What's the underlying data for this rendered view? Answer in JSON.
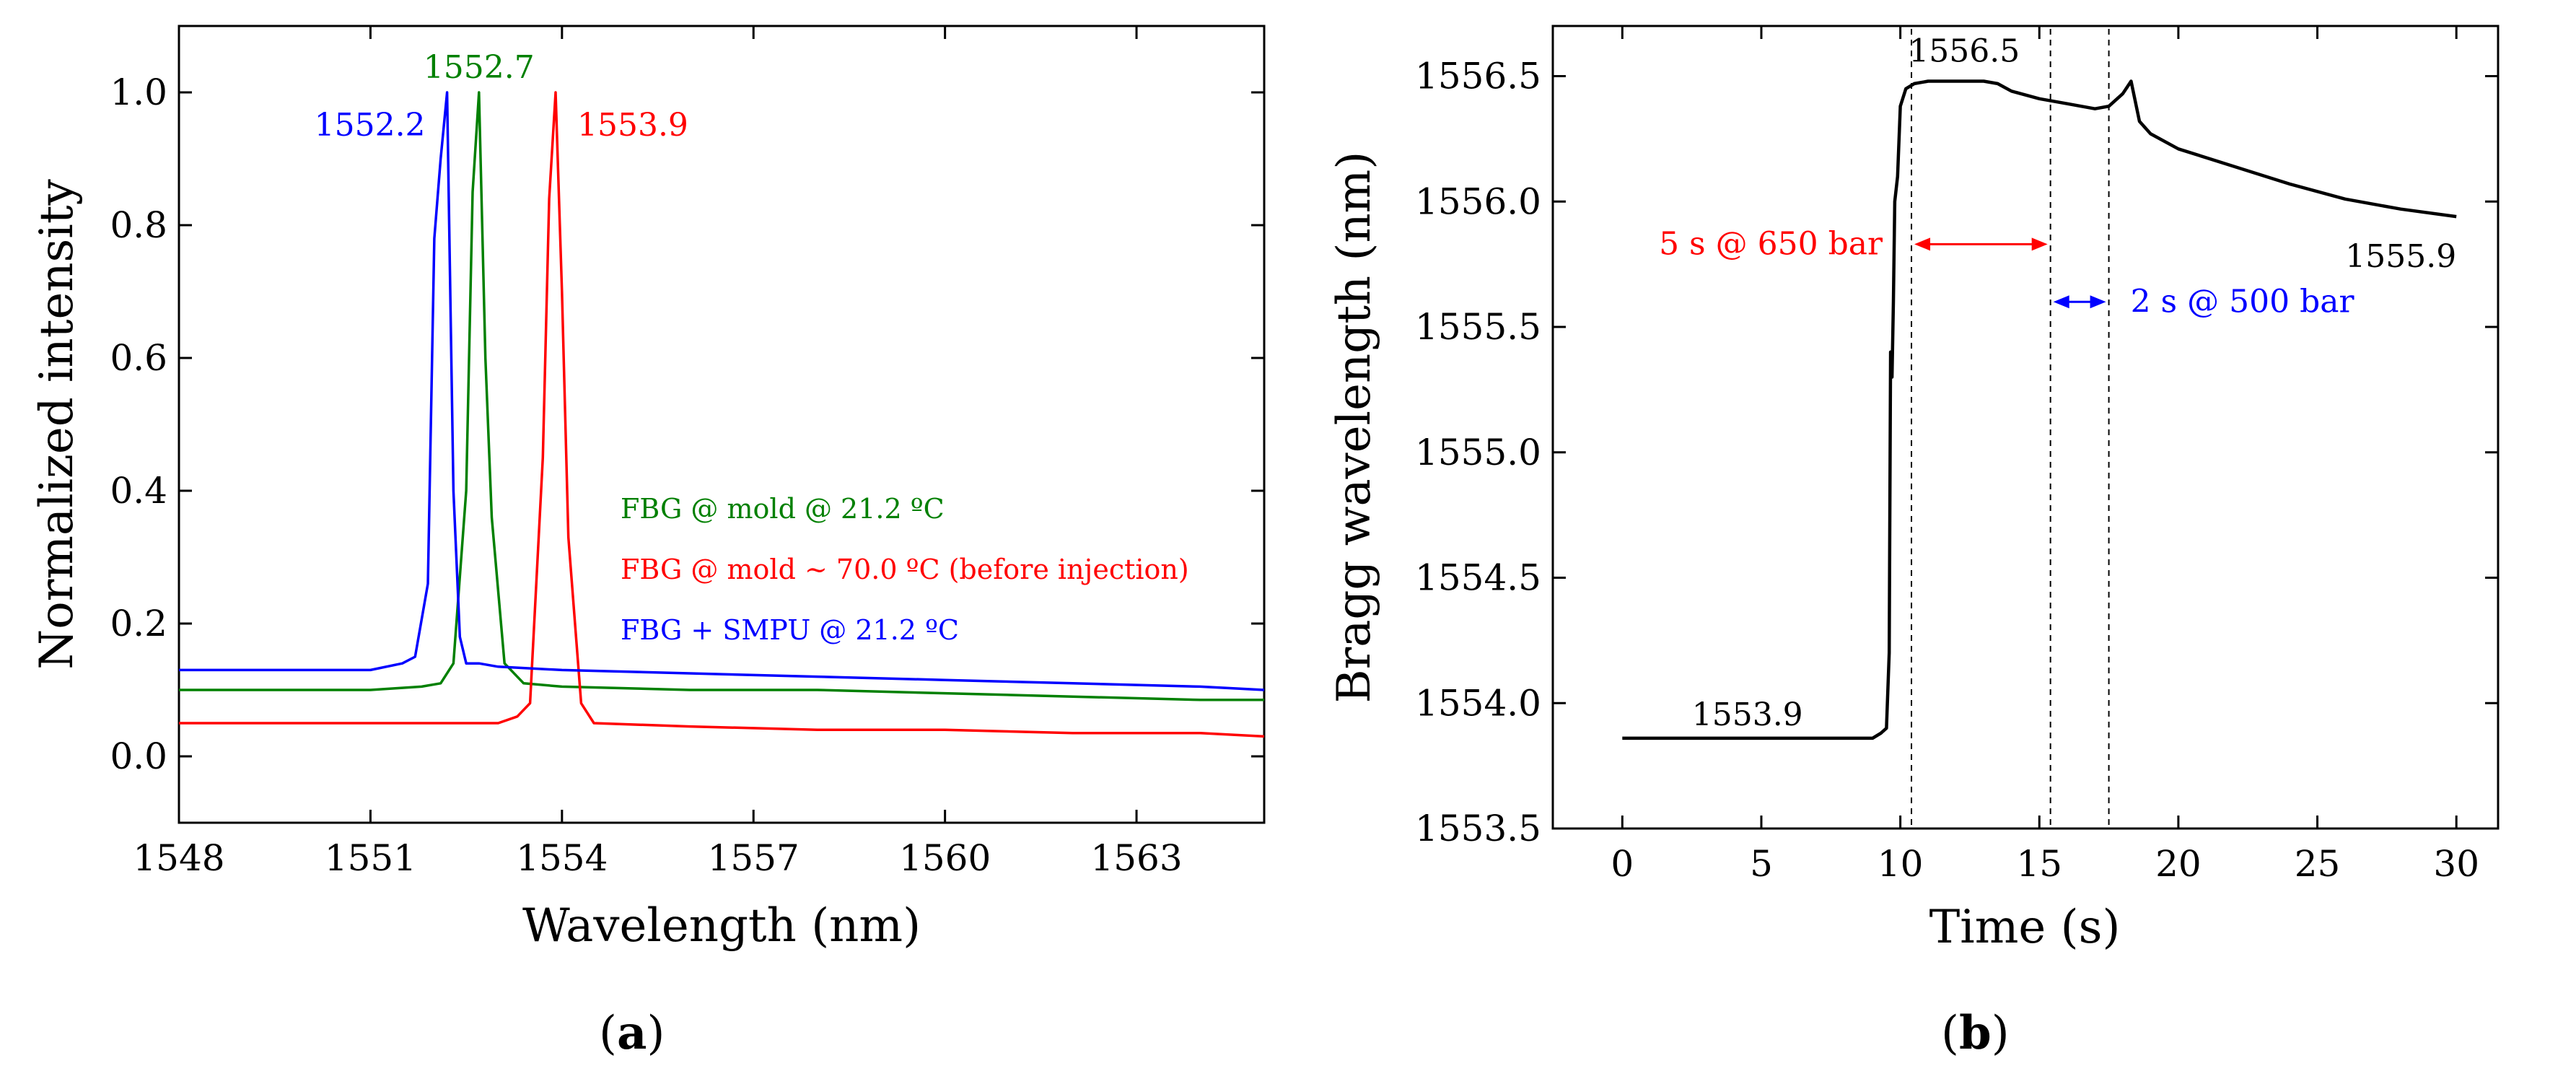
{
  "chart_data": [
    {
      "type": "line",
      "panel": "a",
      "caption": "(a)",
      "xlabel": "Wavelength (nm)",
      "ylabel": "Normalized intensity",
      "xlim": [
        1548,
        1565
      ],
      "ylim": [
        -0.1,
        1.1
      ],
      "xticks": [
        1548,
        1551,
        1554,
        1557,
        1560,
        1563
      ],
      "yticks": [
        0.0,
        0.2,
        0.4,
        0.6,
        0.8,
        1.0
      ],
      "xtick_labels": [
        "1548",
        "1551",
        "1554",
        "1557",
        "1560",
        "1563"
      ],
      "ytick_labels": [
        "0.0",
        "0.2",
        "0.4",
        "0.6",
        "0.8",
        "1.0"
      ],
      "legend_position": "right-center",
      "series": [
        {
          "name": "FBG @ mold @ 21.2 ºC",
          "color": "#008000",
          "peak_label": "1552.7",
          "x": [
            1548.0,
            1549.0,
            1550.0,
            1551.0,
            1551.8,
            1552.1,
            1552.3,
            1552.5,
            1552.6,
            1552.7,
            1552.8,
            1552.9,
            1553.1,
            1553.4,
            1554.0,
            1556.0,
            1558.0,
            1560.0,
            1562.0,
            1564.0,
            1565.0
          ],
          "y": [
            0.1,
            0.1,
            0.1,
            0.1,
            0.105,
            0.11,
            0.14,
            0.4,
            0.85,
            1.0,
            0.6,
            0.36,
            0.14,
            0.11,
            0.105,
            0.1,
            0.1,
            0.095,
            0.09,
            0.085,
            0.085
          ]
        },
        {
          "name": "FBG @ mold ~ 70.0 ºC (before injection)",
          "color": "#ff0000",
          "peak_label": "1553.9",
          "x": [
            1548.0,
            1550.0,
            1552.0,
            1553.0,
            1553.3,
            1553.5,
            1553.7,
            1553.8,
            1553.9,
            1554.0,
            1554.1,
            1554.3,
            1554.5,
            1556.0,
            1558.0,
            1560.0,
            1562.0,
            1564.0,
            1565.0
          ],
          "y": [
            0.05,
            0.05,
            0.05,
            0.05,
            0.06,
            0.08,
            0.45,
            0.84,
            1.0,
            0.7,
            0.33,
            0.08,
            0.05,
            0.045,
            0.04,
            0.04,
            0.035,
            0.035,
            0.03
          ]
        },
        {
          "name": "FBG + SMPU @ 21.2 ºC",
          "color": "#0000ff",
          "peak_label": "1552.2",
          "x": [
            1548.0,
            1549.0,
            1550.0,
            1551.0,
            1551.5,
            1551.7,
            1551.9,
            1552.0,
            1552.1,
            1552.2,
            1552.3,
            1552.4,
            1552.5,
            1552.7,
            1553.0,
            1554.0,
            1556.0,
            1558.0,
            1560.0,
            1562.0,
            1564.0,
            1565.0
          ],
          "y": [
            0.13,
            0.13,
            0.13,
            0.13,
            0.14,
            0.15,
            0.26,
            0.78,
            0.9,
            1.0,
            0.4,
            0.18,
            0.14,
            0.14,
            0.135,
            0.13,
            0.125,
            0.12,
            0.115,
            0.11,
            0.105,
            0.1
          ]
        }
      ]
    },
    {
      "type": "line",
      "panel": "b",
      "caption": "(b)",
      "xlabel": "Time (s)",
      "ylabel": "Bragg wavelength (nm)",
      "xlim": [
        -2.5,
        31.5
      ],
      "ylim": [
        1553.5,
        1556.7
      ],
      "xticks": [
        0,
        5,
        10,
        15,
        20,
        25,
        30
      ],
      "yticks": [
        1553.5,
        1554.0,
        1554.5,
        1555.0,
        1555.5,
        1556.0,
        1556.5
      ],
      "xtick_labels": [
        "0",
        "5",
        "10",
        "15",
        "20",
        "25",
        "30"
      ],
      "ytick_labels": [
        "1553.5",
        "1554.0",
        "1554.5",
        "1555.0",
        "1555.5",
        "1556.0",
        "1556.5"
      ],
      "series": [
        {
          "name": "Bragg wavelength",
          "color": "#000000",
          "x": [
            0,
            5,
            9.0,
            9.3,
            9.5,
            9.6,
            9.65,
            9.7,
            9.75,
            9.8,
            9.9,
            10.0,
            10.2,
            10.5,
            11,
            12,
            13,
            13.5,
            14,
            15,
            16,
            17,
            17.5,
            18,
            18.3,
            18.6,
            19,
            20,
            22,
            24,
            26,
            28,
            30
          ],
          "y": [
            1553.86,
            1553.86,
            1553.86,
            1553.88,
            1553.9,
            1554.2,
            1555.4,
            1555.3,
            1555.6,
            1556.0,
            1556.1,
            1556.38,
            1556.45,
            1556.47,
            1556.48,
            1556.48,
            1556.48,
            1556.47,
            1556.44,
            1556.41,
            1556.39,
            1556.37,
            1556.38,
            1556.43,
            1556.48,
            1556.32,
            1556.27,
            1556.21,
            1556.14,
            1556.07,
            1556.01,
            1555.97,
            1555.94
          ]
        }
      ],
      "vlines": [
        10.4,
        15.4,
        17.5
      ],
      "annotations": {
        "start_value": "1553.9",
        "peak_value": "1556.5",
        "end_value": "1555.9",
        "hold1": {
          "label": "5 s  @ 650 bar",
          "from": 10.4,
          "to": 15.4,
          "color": "#ff0000"
        },
        "hold2": {
          "label": "2 s  @ 500 bar",
          "from": 15.4,
          "to": 17.5,
          "color": "#0000ff"
        }
      }
    }
  ]
}
